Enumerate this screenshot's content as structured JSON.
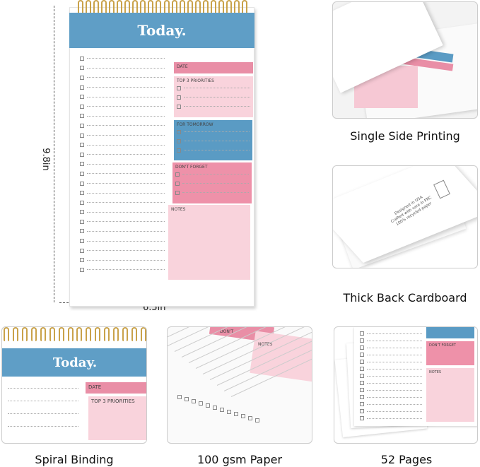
{
  "notepad": {
    "title": "Today.",
    "sections": [
      {
        "label": "DATE",
        "color": "#e98ea6",
        "rows": 0
      },
      {
        "label": "TOP 3 PRIORITIES",
        "color": "#f9d3dc",
        "rows": 3
      },
      {
        "label": "FOR TOMORROW",
        "color": "#5a9bc4",
        "rows": 3
      },
      {
        "label": "DON'T FORGET",
        "color": "#ee91a9",
        "rows": 3
      },
      {
        "label": "NOTES",
        "color": "#f9d3dc",
        "rows": 0
      }
    ],
    "height_label": "9.8in",
    "width_label": "6.5in"
  },
  "features": [
    {
      "label": "Single Side Printing"
    },
    {
      "label": "Thick Back Cardboard",
      "print_text": [
        "Designed in USA",
        "Crafted with care in PRC",
        "100% recycled paper"
      ]
    },
    {
      "label": "Spiral Binding",
      "title": "Today.",
      "sections": [
        "DATE",
        "TOP 3 PRIORITIES"
      ]
    },
    {
      "label": "100 gsm Paper",
      "sections": [
        "DON'T",
        "NOTES"
      ]
    },
    {
      "label": "52 Pages",
      "sections": [
        "DON'T FORGET",
        "NOTES"
      ]
    }
  ]
}
